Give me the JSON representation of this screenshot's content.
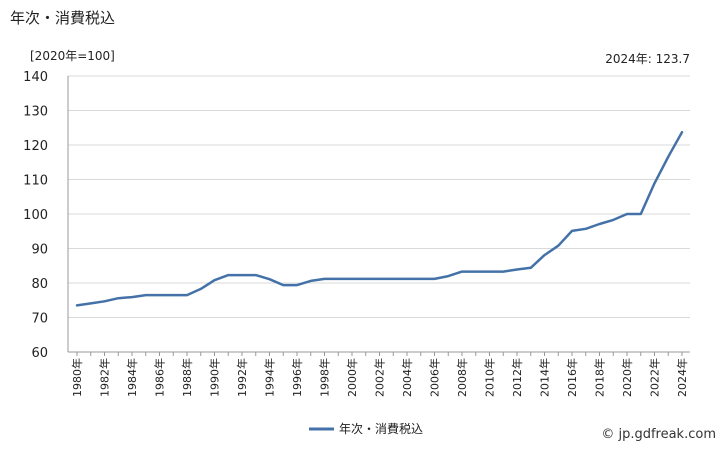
{
  "header": {
    "title": "年次・消費税込",
    "unit_label": "[2020年=100]",
    "latest_value": "2024年: 123.7"
  },
  "footer": {
    "source": "© jp.gdfreak.com"
  },
  "chart_data": {
    "type": "line",
    "title": "年次・消費税込",
    "xlabel": "",
    "ylabel": "[2020年=100]",
    "ylim": [
      60,
      140
    ],
    "yticks": [
      60,
      70,
      80,
      90,
      100,
      110,
      120,
      130,
      140
    ],
    "xtick_labels": [
      "1980年",
      "1982年",
      "1984年",
      "1986年",
      "1988年",
      "1990年",
      "1992年",
      "1994年",
      "1996年",
      "1998年",
      "2000年",
      "2002年",
      "2004年",
      "2006年",
      "2008年",
      "2010年",
      "2012年",
      "2014年",
      "2016年",
      "2018年",
      "2020年",
      "2022年",
      "2024年"
    ],
    "x": [
      1980,
      1981,
      1982,
      1983,
      1984,
      1985,
      1986,
      1987,
      1988,
      1989,
      1990,
      1991,
      1992,
      1993,
      1994,
      1995,
      1996,
      1997,
      1998,
      1999,
      2000,
      2001,
      2002,
      2003,
      2004,
      2005,
      2006,
      2007,
      2008,
      2009,
      2010,
      2011,
      2012,
      2013,
      2014,
      2015,
      2016,
      2017,
      2018,
      2019,
      2020,
      2021,
      2022,
      2023,
      2024
    ],
    "series": [
      {
        "name": "年次・消費税込",
        "color": "#4472a8",
        "values": [
          73.5,
          74.1,
          74.7,
          75.6,
          75.9,
          76.5,
          76.5,
          76.5,
          76.5,
          78.3,
          80.8,
          82.3,
          82.3,
          82.3,
          81.1,
          79.4,
          79.4,
          80.6,
          81.2,
          81.2,
          81.2,
          81.2,
          81.2,
          81.2,
          81.2,
          81.2,
          81.2,
          82.0,
          83.3,
          83.3,
          83.3,
          83.3,
          83.9,
          84.4,
          88.1,
          90.8,
          95.1,
          95.7,
          97.1,
          98.3,
          100.0,
          100.0,
          108.9,
          116.6,
          123.7
        ]
      }
    ],
    "grid": true,
    "legend_position": "bottom-center"
  }
}
